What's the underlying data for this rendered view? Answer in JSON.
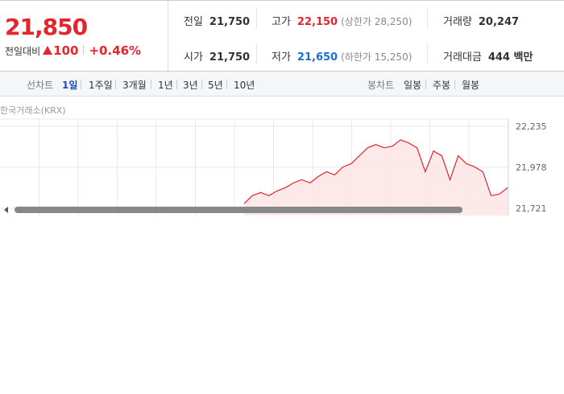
{
  "quote": {
    "price": "21,850",
    "change_label": "전일대비",
    "change": "100",
    "change_rate": "+0.46%"
  },
  "stats": [
    {
      "label": "전일",
      "value": "21,750"
    },
    {
      "label": "고가",
      "value": "22,150",
      "note": "(상한가 28,250)"
    },
    {
      "label": "거래량",
      "value": "20,247"
    },
    {
      "label": "시가",
      "value": "21,750"
    },
    {
      "label": "저가",
      "value": "21,650",
      "note": "(하한가 15,250)"
    },
    {
      "label": "거래대금",
      "value": "444 백만"
    }
  ],
  "toolbar": {
    "line_label": "선차트",
    "periods": [
      "1일",
      "1주일",
      "3개월",
      "1년",
      "3년",
      "5년",
      "10년"
    ],
    "candle_label": "봉차트",
    "candles": [
      "일봉",
      "주봉",
      "월봉"
    ]
  },
  "chart_data": {
    "type": "line",
    "source": "한국거래소(KRX)",
    "color": "#e4252d",
    "values": [
      21750,
      21800,
      21820,
      21800,
      21830,
      21850,
      21880,
      21900,
      21880,
      21920,
      21950,
      21930,
      21980,
      22000,
      22050,
      22100,
      22120,
      22100,
      22110,
      22150,
      22130,
      22100,
      21950,
      22080,
      22050,
      21900,
      22050,
      22000,
      21980,
      21950,
      21800,
      21810,
      21850
    ],
    "ylim": [
      21721,
      22235
    ],
    "yticks": [
      {
        "value": 22235,
        "label": "22,235"
      },
      {
        "value": 21978,
        "label": "21,978"
      },
      {
        "value": 21721,
        "label": "21,721"
      }
    ]
  }
}
